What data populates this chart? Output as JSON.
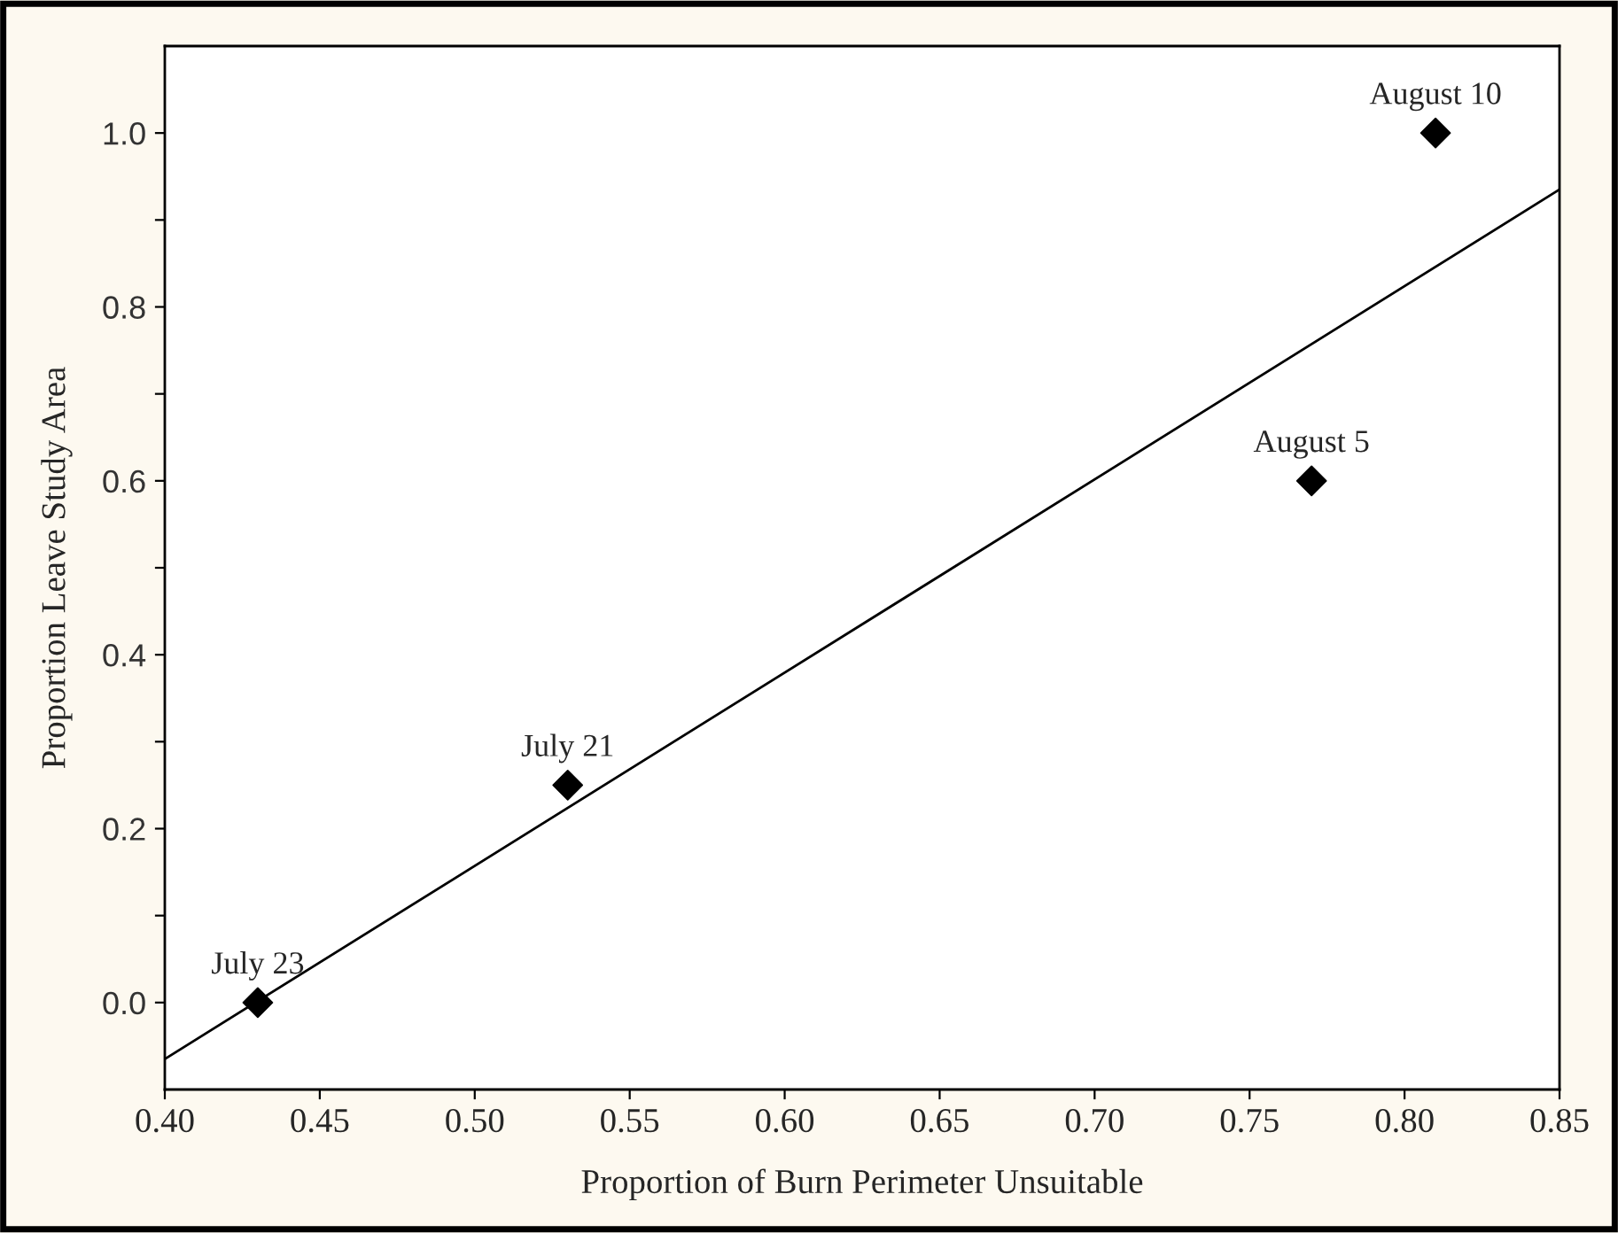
{
  "chart_data": {
    "type": "scatter",
    "xlabel": "Proportion of Burn Perimeter Unsuitable",
    "ylabel": "Proportion Leave Study Area",
    "series": [
      {
        "color": "#000000",
        "x": [
          0.43,
          0.53,
          0.77,
          0.81
        ],
        "values": [
          0.0,
          0.25,
          0.6,
          1.0
        ],
        "marker": "diamond"
      },
      {
        "type": "line",
        "color": "#000000",
        "x": [
          0.4,
          0.85
        ],
        "values": [
          -0.065,
          0.935
        ],
        "line_style": "solid"
      }
    ],
    "annotations": [
      {
        "text": "July 23",
        "x": 0.43,
        "y": 0.0
      },
      {
        "text": "July 21",
        "x": 0.53,
        "y": 0.25
      },
      {
        "text": "August 5",
        "x": 0.77,
        "y": 0.6
      },
      {
        "text": "August 10",
        "x": 0.81,
        "y": 1.0
      }
    ],
    "xlim": [
      0.4,
      0.85
    ],
    "ylim": [
      -0.1,
      1.1
    ],
    "xticks": [
      {
        "value": 0.4,
        "label": "0.40"
      },
      {
        "value": 0.45,
        "label": "0.45"
      },
      {
        "value": 0.5,
        "label": "0.50"
      },
      {
        "value": 0.55,
        "label": "0.55"
      },
      {
        "value": 0.6,
        "label": "0.60"
      },
      {
        "value": 0.65,
        "label": "0.65"
      },
      {
        "value": 0.7,
        "label": "0.70"
      },
      {
        "value": 0.75,
        "label": "0.75"
      },
      {
        "value": 0.8,
        "label": "0.80"
      },
      {
        "value": 0.85,
        "label": "0.85"
      }
    ],
    "yticks": [
      {
        "value": 0.0,
        "label": "0.0"
      },
      {
        "value": 0.1,
        "label": null
      },
      {
        "value": 0.2,
        "label": "0.2"
      },
      {
        "value": 0.3,
        "label": null
      },
      {
        "value": 0.4,
        "label": "0.4"
      },
      {
        "value": 0.5,
        "label": null
      },
      {
        "value": 0.6,
        "label": "0.6"
      },
      {
        "value": 0.7,
        "label": null
      },
      {
        "value": 0.8,
        "label": "0.8"
      },
      {
        "value": 0.9,
        "label": null
      },
      {
        "value": 1.0,
        "label": "1.0"
      }
    ],
    "grid": false,
    "legend": false
  }
}
